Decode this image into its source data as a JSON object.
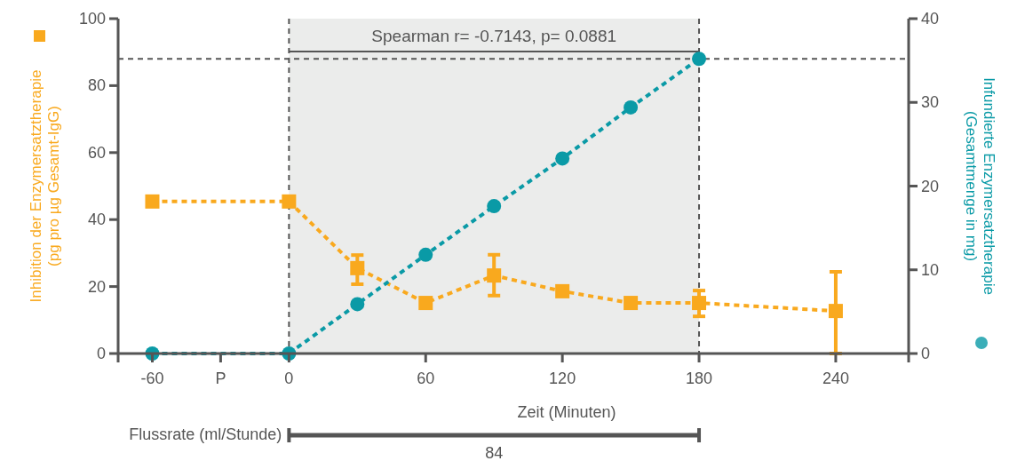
{
  "chart_data": {
    "type": "line",
    "xlabel": "Zeit (Minuten)",
    "ylabel": "Inhibition der Enzymersatztherapie\n(pg pro µg Gesamt-IgG)",
    "y2label": "Infundierte Enzymersatztherapie\n(Gesamtmenge in mg)",
    "x": [
      -60,
      0,
      30,
      60,
      90,
      120,
      150,
      180,
      240
    ],
    "xlim": [
      -75,
      272
    ],
    "xticks": [
      -60,
      {
        "value": -30,
        "label": "P"
      },
      0,
      60,
      120,
      180,
      240
    ],
    "ylim": [
      0,
      100
    ],
    "yticks": [
      0,
      20,
      40,
      60,
      80,
      100
    ],
    "y2lim": [
      0,
      40
    ],
    "y2ticks": [
      0,
      10,
      20,
      30,
      40
    ],
    "line_style": "dashed",
    "series": [
      {
        "color": "#f9a91e",
        "marker": "square",
        "values": [
          45.4,
          45.4,
          25.5,
          15.1,
          23.3,
          18.6,
          15.1,
          15.1,
          12.7
        ],
        "errors": [
          null,
          null,
          [
            20.7,
            29.4
          ],
          null,
          [
            17.3,
            29.5
          ],
          null,
          null,
          [
            11.1,
            18.8
          ],
          [
            0,
            24.4
          ]
        ]
      },
      {
        "color": "#0a9aa6",
        "marker": "circle",
        "axis": "y2",
        "x": [
          -60,
          0,
          30,
          60,
          90,
          120,
          150,
          180
        ],
        "values": [
          0,
          0,
          5.9,
          11.8,
          17.6,
          23.3,
          29.4,
          35.2
        ]
      }
    ],
    "ref_lines": [
      {
        "axis": "x",
        "value": 0,
        "line_style": "dashed"
      },
      {
        "axis": "x",
        "value": 180,
        "line_style": "dashed"
      },
      {
        "axis": "y2",
        "value": 35.2,
        "line_style": "dashed"
      }
    ],
    "bands": [
      {
        "axis": "x",
        "from": 0,
        "to": 180,
        "color": "#ebeceb"
      }
    ],
    "annotations": [
      "Spearman r= -0.7143, p= 0.0881",
      "Flussrate (ml/Stunde)",
      "84"
    ]
  }
}
